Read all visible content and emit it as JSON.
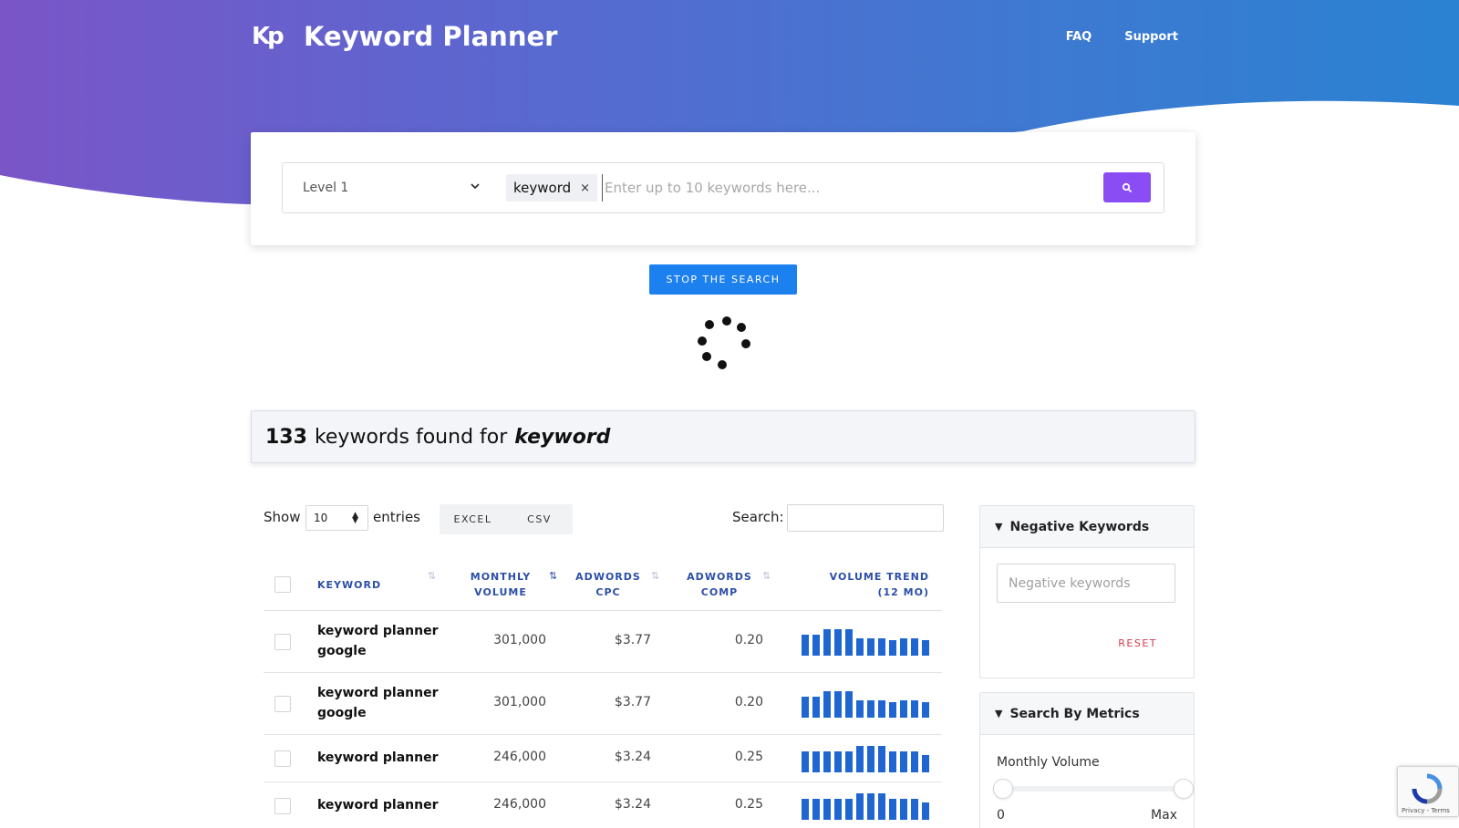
{
  "header": {
    "logo": "Kp",
    "app_title": "Keyword Planner",
    "nav": [
      {
        "label": "FAQ"
      },
      {
        "label": "Support"
      }
    ]
  },
  "search": {
    "level_value": "Level 1",
    "chip": "keyword",
    "placeholder": "Enter up to 10 keywords here...",
    "stop_label": "STOP THE SEARCH"
  },
  "results": {
    "count": "133",
    "text": "keywords found for",
    "term": "keyword"
  },
  "table_controls": {
    "show_label": "Show",
    "entries_value": "10",
    "entries_label": "entries",
    "export": [
      "EXCEL",
      "CSV"
    ],
    "search_label": "Search:"
  },
  "table": {
    "headers": {
      "keyword": "KEYWORD",
      "volume_1": "MONTHLY",
      "volume_2": "VOLUME",
      "cpc_1": "ADWORDS",
      "cpc_2": "CPC",
      "comp_1": "ADWORDS",
      "comp_2": "COMP",
      "trend_1": "VOLUME TREND",
      "trend_2": "(12 MO)"
    },
    "rows": [
      {
        "keyword_1": "keyword planner",
        "keyword_2": "google",
        "volume": "301,000",
        "cpc": "$3.77",
        "comp": "0.20",
        "trend": [
          0.75,
          0.75,
          0.95,
          0.95,
          0.95,
          0.62,
          0.62,
          0.62,
          0.58,
          0.62,
          0.62,
          0.55
        ]
      },
      {
        "keyword_1": "keyword planner",
        "keyword_2": "google",
        "volume": "301,000",
        "cpc": "$3.77",
        "comp": "0.20",
        "trend": [
          0.75,
          0.78,
          0.95,
          0.95,
          0.95,
          0.62,
          0.62,
          0.62,
          0.55,
          0.62,
          0.62,
          0.55
        ]
      },
      {
        "keyword_1": "keyword planner",
        "keyword_2": "",
        "volume": "246,000",
        "cpc": "$3.24",
        "comp": "0.25",
        "trend": [
          0.78,
          0.78,
          0.78,
          0.78,
          0.78,
          0.95,
          0.95,
          0.95,
          0.78,
          0.78,
          0.78,
          0.62
        ]
      },
      {
        "keyword_1": "keyword planner",
        "keyword_2": "",
        "volume": "246,000",
        "cpc": "$3.24",
        "comp": "0.25",
        "trend": [
          0.78,
          0.78,
          0.78,
          0.78,
          0.78,
          0.95,
          0.95,
          0.95,
          0.78,
          0.78,
          0.78,
          0.62
        ]
      }
    ]
  },
  "sidebar": {
    "negative": {
      "title": "Negative Keywords",
      "placeholder": "Negative keywords",
      "reset": "RESET"
    },
    "metrics": {
      "title": "Search By Metrics",
      "label": "Monthly Volume",
      "min": "0",
      "max": "Max"
    }
  },
  "recaptcha": {
    "text": "Privacy - Terms"
  },
  "colors": {
    "brand_purple": "#8a4cf3",
    "accent_blue": "#1d80ef",
    "header_blue": "#2b4ea8",
    "trend_bar": "#1f66d1",
    "reset_red": "#d4394c"
  }
}
